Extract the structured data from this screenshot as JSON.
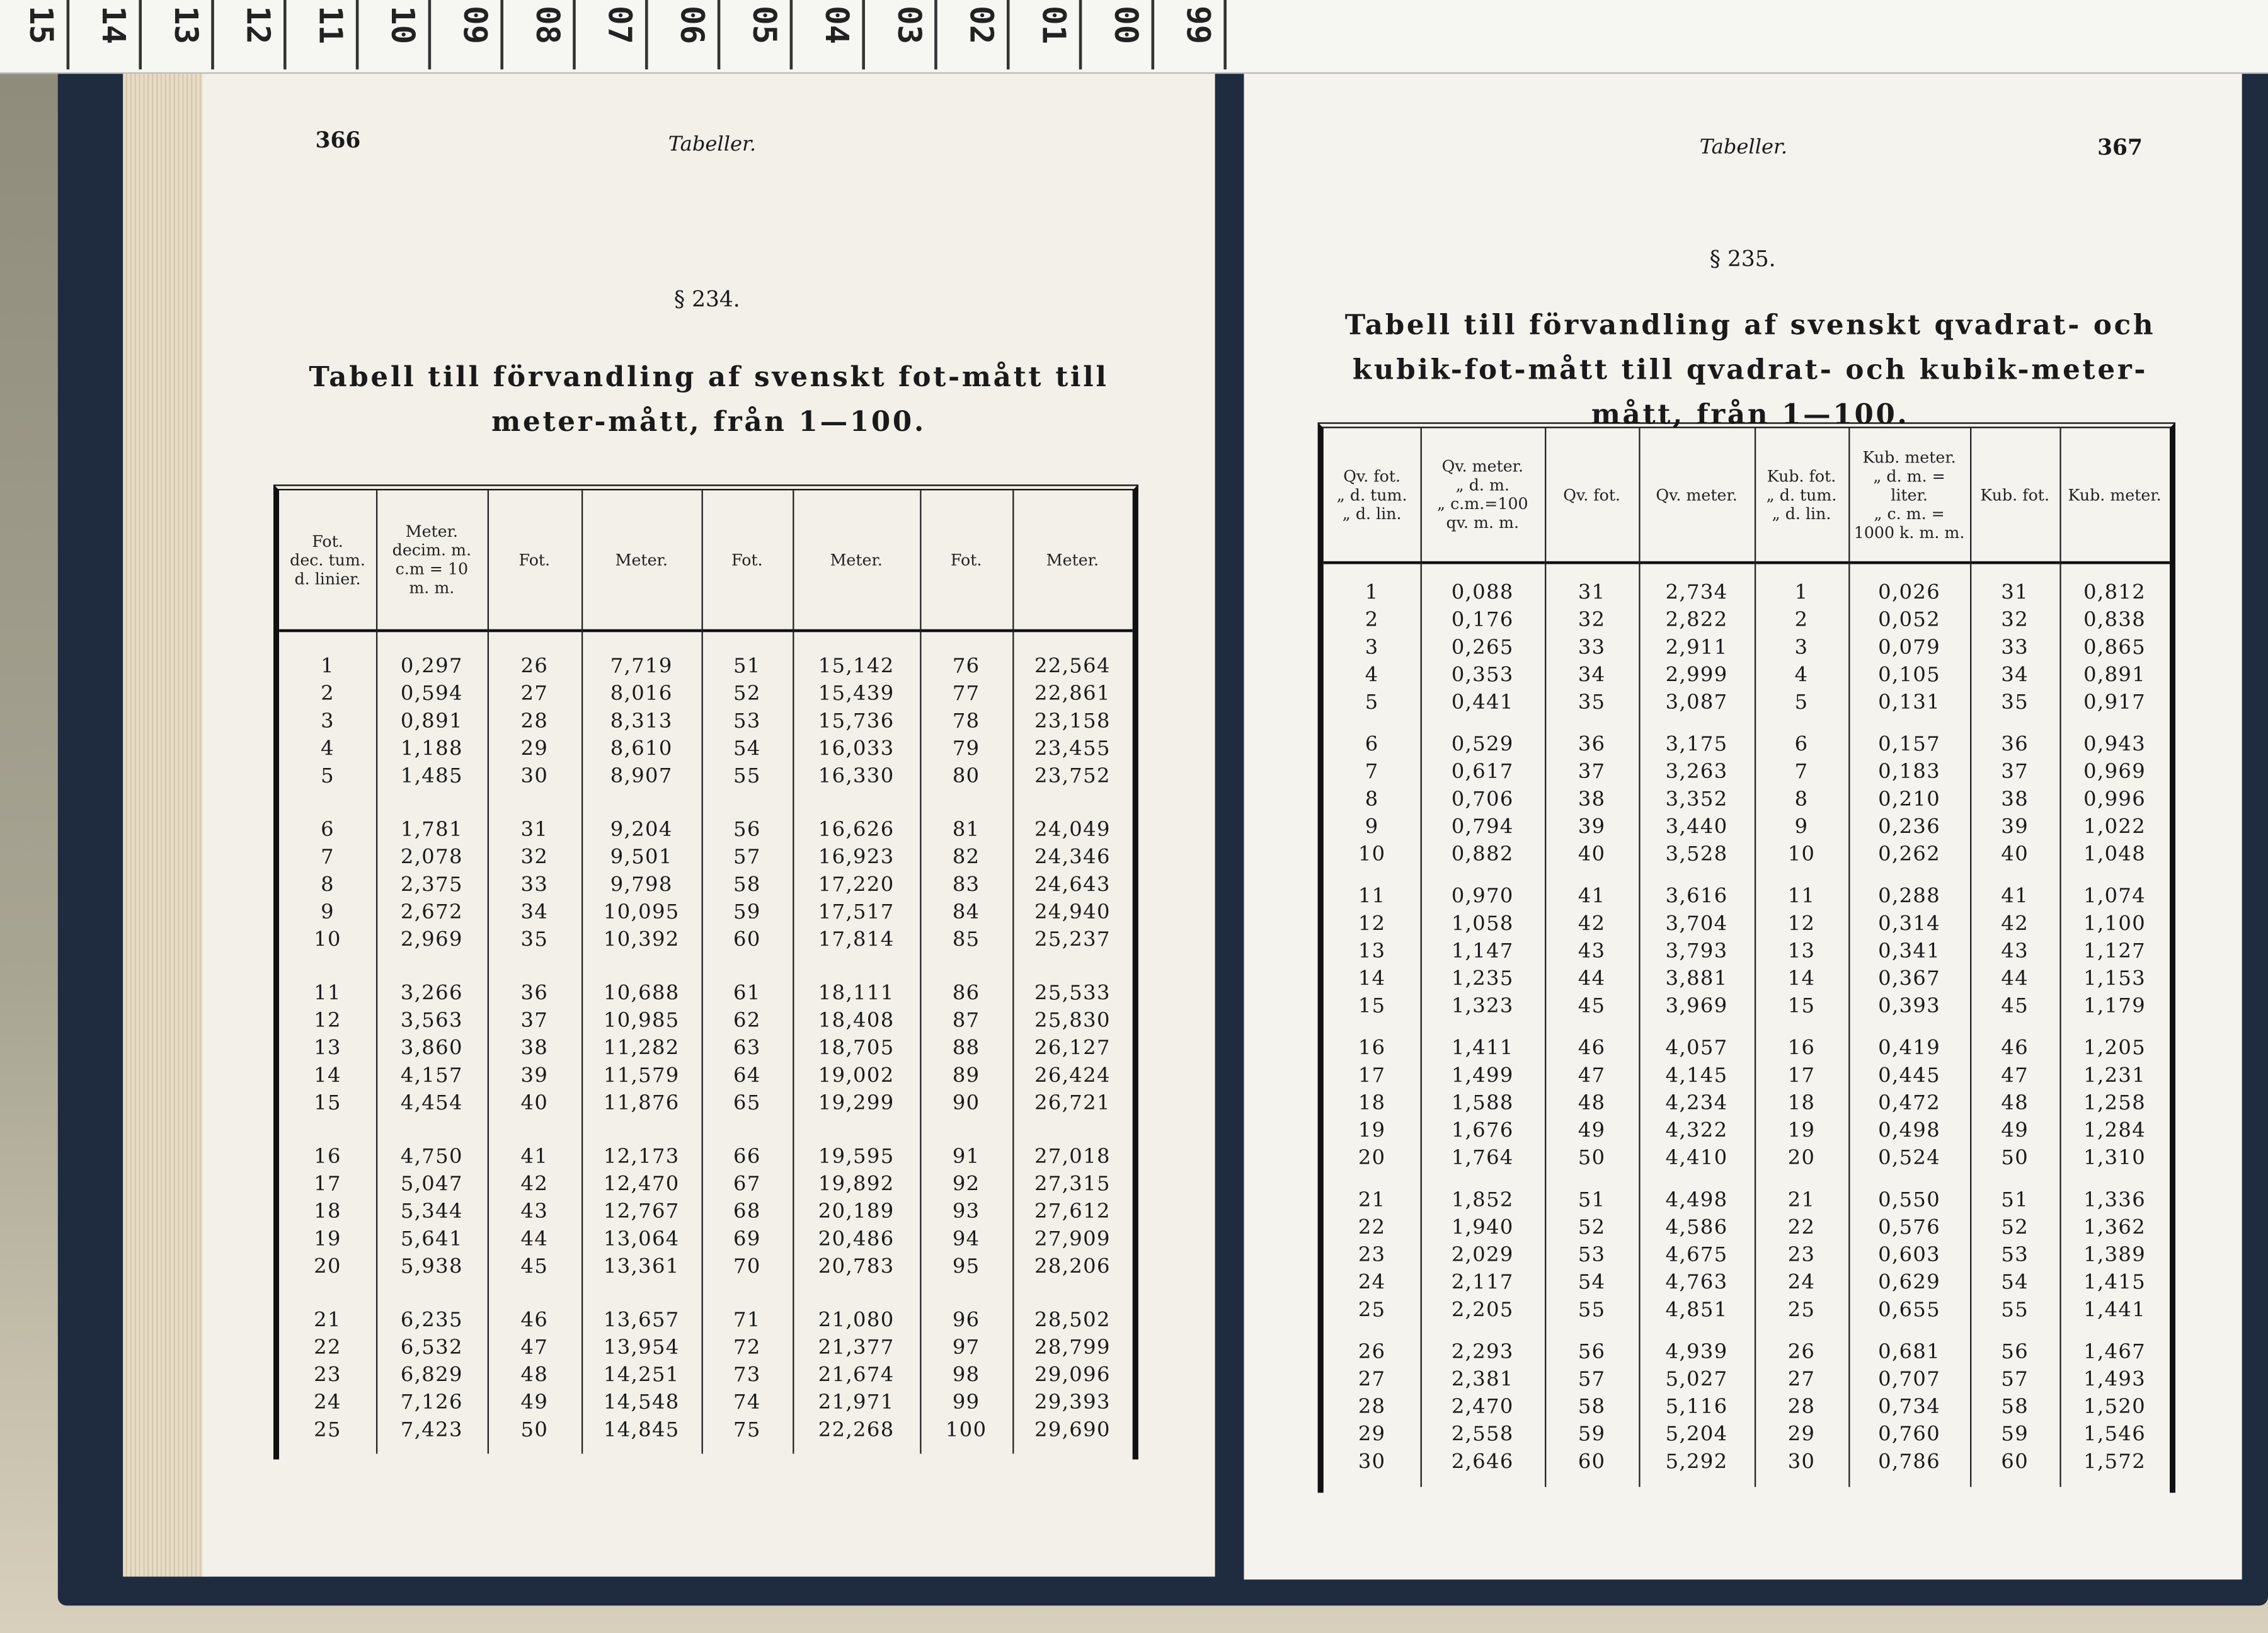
{
  "ruler": {
    "labels": [
      "15",
      "14",
      "13",
      "12",
      "11",
      "10",
      "09",
      "08",
      "07",
      "06",
      "05",
      "04",
      "03",
      "02",
      "01",
      "00",
      "99"
    ]
  },
  "left": {
    "page_number": "366",
    "running_head": "Tabeller.",
    "section": "§ 234.",
    "title": "Tabell till förvandling af svenskt fot-mått till meter-mått, från 1—100.",
    "table": {
      "header": [
        "Fot.\ndec. tum.\nd. linier.",
        "Meter.\ndecim. m.\nc.m = 10\nm. m.",
        "Fot.",
        "Meter.",
        "Fot.",
        "Meter.",
        "Fot.",
        "Meter."
      ],
      "rows": [
        [
          1,
          "0,297",
          26,
          "7,719",
          51,
          "15,142",
          76,
          "22,564"
        ],
        [
          2,
          "0,594",
          27,
          "8,016",
          52,
          "15,439",
          77,
          "22,861"
        ],
        [
          3,
          "0,891",
          28,
          "8,313",
          53,
          "15,736",
          78,
          "23,158"
        ],
        [
          4,
          "1,188",
          29,
          "8,610",
          54,
          "16,033",
          79,
          "23,455"
        ],
        [
          5,
          "1,485",
          30,
          "8,907",
          55,
          "16,330",
          80,
          "23,752"
        ],
        [
          6,
          "1,781",
          31,
          "9,204",
          56,
          "16,626",
          81,
          "24,049"
        ],
        [
          7,
          "2,078",
          32,
          "9,501",
          57,
          "16,923",
          82,
          "24,346"
        ],
        [
          8,
          "2,375",
          33,
          "9,798",
          58,
          "17,220",
          83,
          "24,643"
        ],
        [
          9,
          "2,672",
          34,
          "10,095",
          59,
          "17,517",
          84,
          "24,940"
        ],
        [
          10,
          "2,969",
          35,
          "10,392",
          60,
          "17,814",
          85,
          "25,237"
        ],
        [
          11,
          "3,266",
          36,
          "10,688",
          61,
          "18,111",
          86,
          "25,533"
        ],
        [
          12,
          "3,563",
          37,
          "10,985",
          62,
          "18,408",
          87,
          "25,830"
        ],
        [
          13,
          "3,860",
          38,
          "11,282",
          63,
          "18,705",
          88,
          "26,127"
        ],
        [
          14,
          "4,157",
          39,
          "11,579",
          64,
          "19,002",
          89,
          "26,424"
        ],
        [
          15,
          "4,454",
          40,
          "11,876",
          65,
          "19,299",
          90,
          "26,721"
        ],
        [
          16,
          "4,750",
          41,
          "12,173",
          66,
          "19,595",
          91,
          "27,018"
        ],
        [
          17,
          "5,047",
          42,
          "12,470",
          67,
          "19,892",
          92,
          "27,315"
        ],
        [
          18,
          "5,344",
          43,
          "12,767",
          68,
          "20,189",
          93,
          "27,612"
        ],
        [
          19,
          "5,641",
          44,
          "13,064",
          69,
          "20,486",
          94,
          "27,909"
        ],
        [
          20,
          "5,938",
          45,
          "13,361",
          70,
          "20,783",
          95,
          "28,206"
        ],
        [
          21,
          "6,235",
          46,
          "13,657",
          71,
          "21,080",
          96,
          "28,502"
        ],
        [
          22,
          "6,532",
          47,
          "13,954",
          72,
          "21,377",
          97,
          "28,799"
        ],
        [
          23,
          "6,829",
          48,
          "14,251",
          73,
          "21,674",
          98,
          "29,096"
        ],
        [
          24,
          "7,126",
          49,
          "14,548",
          74,
          "21,971",
          99,
          "29,393"
        ],
        [
          25,
          "7,423",
          50,
          "14,845",
          75,
          "22,268",
          100,
          "29,690"
        ]
      ]
    }
  },
  "right": {
    "page_number": "367",
    "running_head": "Tabeller.",
    "section": "§ 235.",
    "title": "Tabell till förvandling af svenskt qvadrat- och kubik-fot-mått till qvadrat- och kubik-meter-mått, från 1—100.",
    "table": {
      "header": [
        "Qv. fot.\n„ d. tum.\n„ d. lin.",
        "Qv. meter.\n„ d. m.\n„ c.m.=100\nqv. m. m.",
        "Qv. fot.",
        "Qv. meter.",
        "Kub. fot.\n„ d. tum.\n„ d. lin.",
        "Kub. meter.\n„ d. m. =\nliter.\n„ c. m. =\n1000 k. m. m.",
        "Kub. fot.",
        "Kub. meter."
      ],
      "rows": [
        [
          1,
          "0,088",
          31,
          "2,734",
          1,
          "0,026",
          31,
          "0,812"
        ],
        [
          2,
          "0,176",
          32,
          "2,822",
          2,
          "0,052",
          32,
          "0,838"
        ],
        [
          3,
          "0,265",
          33,
          "2,911",
          3,
          "0,079",
          33,
          "0,865"
        ],
        [
          4,
          "0,353",
          34,
          "2,999",
          4,
          "0,105",
          34,
          "0,891"
        ],
        [
          5,
          "0,441",
          35,
          "3,087",
          5,
          "0,131",
          35,
          "0,917"
        ],
        [
          6,
          "0,529",
          36,
          "3,175",
          6,
          "0,157",
          36,
          "0,943"
        ],
        [
          7,
          "0,617",
          37,
          "3,263",
          7,
          "0,183",
          37,
          "0,969"
        ],
        [
          8,
          "0,706",
          38,
          "3,352",
          8,
          "0,210",
          38,
          "0,996"
        ],
        [
          9,
          "0,794",
          39,
          "3,440",
          9,
          "0,236",
          39,
          "1,022"
        ],
        [
          10,
          "0,882",
          40,
          "3,528",
          10,
          "0,262",
          40,
          "1,048"
        ],
        [
          11,
          "0,970",
          41,
          "3,616",
          11,
          "0,288",
          41,
          "1,074"
        ],
        [
          12,
          "1,058",
          42,
          "3,704",
          12,
          "0,314",
          42,
          "1,100"
        ],
        [
          13,
          "1,147",
          43,
          "3,793",
          13,
          "0,341",
          43,
          "1,127"
        ],
        [
          14,
          "1,235",
          44,
          "3,881",
          14,
          "0,367",
          44,
          "1,153"
        ],
        [
          15,
          "1,323",
          45,
          "3,969",
          15,
          "0,393",
          45,
          "1,179"
        ],
        [
          16,
          "1,411",
          46,
          "4,057",
          16,
          "0,419",
          46,
          "1,205"
        ],
        [
          17,
          "1,499",
          47,
          "4,145",
          17,
          "0,445",
          47,
          "1,231"
        ],
        [
          18,
          "1,588",
          48,
          "4,234",
          18,
          "0,472",
          48,
          "1,258"
        ],
        [
          19,
          "1,676",
          49,
          "4,322",
          19,
          "0,498",
          49,
          "1,284"
        ],
        [
          20,
          "1,764",
          50,
          "4,410",
          20,
          "0,524",
          50,
          "1,310"
        ],
        [
          21,
          "1,852",
          51,
          "4,498",
          21,
          "0,550",
          51,
          "1,336"
        ],
        [
          22,
          "1,940",
          52,
          "4,586",
          22,
          "0,576",
          52,
          "1,362"
        ],
        [
          23,
          "2,029",
          53,
          "4,675",
          23,
          "0,603",
          53,
          "1,389"
        ],
        [
          24,
          "2,117",
          54,
          "4,763",
          24,
          "0,629",
          54,
          "1,415"
        ],
        [
          25,
          "2,205",
          55,
          "4,851",
          25,
          "0,655",
          55,
          "1,441"
        ],
        [
          26,
          "2,293",
          56,
          "4,939",
          26,
          "0,681",
          56,
          "1,467"
        ],
        [
          27,
          "2,381",
          57,
          "5,027",
          27,
          "0,707",
          57,
          "1,493"
        ],
        [
          28,
          "2,470",
          58,
          "5,116",
          28,
          "0,734",
          58,
          "1,520"
        ],
        [
          29,
          "2,558",
          59,
          "5,204",
          29,
          "0,760",
          59,
          "1,546"
        ],
        [
          30,
          "2,646",
          60,
          "5,292",
          30,
          "0,786",
          60,
          "1,572"
        ]
      ]
    }
  }
}
